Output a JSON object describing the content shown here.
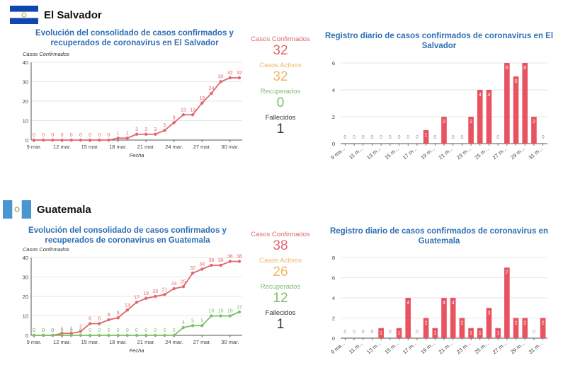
{
  "countries": [
    {
      "name": "El Salvador",
      "stats": {
        "confirmed_label": "Casos Confirmados",
        "confirmed": "32",
        "active_label": "Casos Activos",
        "active": "32",
        "recovered_label": "Recuperados",
        "recovered": "0",
        "deaths_label": "Fallecidos",
        "deaths": "1"
      }
    },
    {
      "name": "Guatemala",
      "stats": {
        "confirmed_label": "Casos Confirmados",
        "confirmed": "38",
        "active_label": "Casos Activos",
        "active": "26",
        "recovered_label": "Recuperados",
        "recovered": "12",
        "deaths_label": "Fallecidos",
        "deaths": "1"
      }
    }
  ],
  "colors": {
    "confirmed": "#e0676d",
    "active": "#f0b566",
    "recovered": "#7cc06a",
    "title": "#2e6fb3",
    "bar": "#e8535f"
  },
  "chart_data": [
    {
      "type": "line",
      "title": "Evolución del consolidado de casos confirmados y recuperados de coronavirus en El Salvador",
      "xlabel": "Fecha",
      "ylabel": "Casos Confirmados",
      "x": [
        "9 mar.",
        "10 mar.",
        "11 mar.",
        "12 mar.",
        "13 mar.",
        "14 mar.",
        "15 mar.",
        "16 mar.",
        "17 mar.",
        "18 mar.",
        "19 mar.",
        "20 mar.",
        "21 mar.",
        "22 mar.",
        "23 mar.",
        "24 mar.",
        "25 mar.",
        "26 mar.",
        "27 mar.",
        "28 mar.",
        "29 mar.",
        "30 mar.",
        "31 mar."
      ],
      "xtick_labels": [
        "9 mar.",
        "12 mar.",
        "15 mar.",
        "18 mar.",
        "21 mar.",
        "24 mar.",
        "27 mar.",
        "30 mar."
      ],
      "ylim": [
        0,
        40
      ],
      "yticks": [
        0,
        10,
        20,
        30,
        40
      ],
      "series": [
        {
          "name": "Casos Confirmados",
          "values": [
            0,
            0,
            0,
            0,
            0,
            0,
            0,
            0,
            0,
            1,
            1,
            3,
            3,
            3,
            5,
            9,
            13,
            13,
            19,
            24,
            30,
            32,
            32
          ]
        }
      ]
    },
    {
      "type": "bar",
      "title": "Registro diario de casos confirmados de coronavirus en El Salvador",
      "categories": [
        "9 mar.",
        "10 mar.",
        "11 mar.",
        "12 mar.",
        "13 mar.",
        "14 mar.",
        "15 mar.",
        "16 mar.",
        "17 mar.",
        "18 mar.",
        "19 mar.",
        "20 mar.",
        "21 mar.",
        "22 mar.",
        "23 mar.",
        "24 mar.",
        "25 mar.",
        "26 mar.",
        "27 mar.",
        "28 mar.",
        "29 mar.",
        "30 mar.",
        "31 mar."
      ],
      "tick_labels": [
        "9 ma...",
        "11 m...",
        "13 m...",
        "15 m...",
        "17 m...",
        "19 m...",
        "21 m...",
        "23 m...",
        "25 m...",
        "27 m...",
        "29 m...",
        "31 m..."
      ],
      "values": [
        0,
        0,
        0,
        0,
        0,
        0,
        0,
        0,
        0,
        1,
        0,
        2,
        0,
        0,
        2,
        4,
        4,
        0,
        6,
        5,
        6,
        2,
        0
      ],
      "ylim": [
        0,
        6
      ],
      "yticks": [
        0,
        2,
        4,
        6
      ]
    },
    {
      "type": "line",
      "title": "Evolución del consolidado de casos confirmados y recuperados de coronavirus en Guatemala",
      "xlabel": "Fecha",
      "ylabel": "Casos Confirmados",
      "x": [
        "9 mar.",
        "10 mar.",
        "11 mar.",
        "12 mar.",
        "13 mar.",
        "14 mar.",
        "15 mar.",
        "16 mar.",
        "17 mar.",
        "18 mar.",
        "19 mar.",
        "20 mar.",
        "21 mar.",
        "22 mar.",
        "23 mar.",
        "24 mar.",
        "25 mar.",
        "26 mar.",
        "27 mar.",
        "28 mar.",
        "29 mar.",
        "30 mar.",
        "31 mar."
      ],
      "xtick_labels": [
        "9 mar.",
        "12 mar.",
        "15 mar.",
        "18 mar.",
        "21 mar.",
        "24 mar.",
        "27 mar.",
        "30 mar."
      ],
      "ylim": [
        0,
        40
      ],
      "yticks": [
        0,
        10,
        20,
        30,
        40
      ],
      "series": [
        {
          "name": "Casos Confirmados",
          "values": [
            0,
            0,
            0,
            1,
            1,
            2,
            6,
            6,
            8,
            9,
            13,
            17,
            19,
            20,
            21,
            24,
            25,
            32,
            34,
            36,
            36,
            38,
            38
          ]
        },
        {
          "name": "Recuperados",
          "values": [
            0,
            0,
            0,
            0,
            0,
            0,
            0,
            0,
            0,
            0,
            0,
            0,
            0,
            0,
            0,
            0,
            4,
            5,
            5,
            10,
            10,
            10,
            12
          ]
        }
      ]
    },
    {
      "type": "bar",
      "title": "Registro diario de casos confirmados de coronavirus en Guatemala",
      "categories": [
        "9 mar.",
        "10 mar.",
        "11 mar.",
        "12 mar.",
        "13 mar.",
        "14 mar.",
        "15 mar.",
        "16 mar.",
        "17 mar.",
        "18 mar.",
        "19 mar.",
        "20 mar.",
        "21 mar.",
        "22 mar.",
        "23 mar.",
        "24 mar.",
        "25 mar.",
        "26 mar.",
        "27 mar.",
        "28 mar.",
        "29 mar.",
        "30 mar.",
        "31 mar."
      ],
      "tick_labels": [
        "9 ma...",
        "11 m...",
        "13 m...",
        "15 m...",
        "17 m...",
        "19 m...",
        "21 m...",
        "23 m...",
        "25 m...",
        "27 m...",
        "29 m...",
        "31 m..."
      ],
      "values": [
        0,
        0,
        0,
        0,
        1,
        0,
        1,
        4,
        0,
        2,
        1,
        4,
        4,
        2,
        1,
        1,
        3,
        1,
        7,
        2,
        2,
        0,
        2
      ],
      "ylim": [
        0,
        8
      ],
      "yticks": [
        0,
        2,
        4,
        6,
        8
      ]
    }
  ]
}
